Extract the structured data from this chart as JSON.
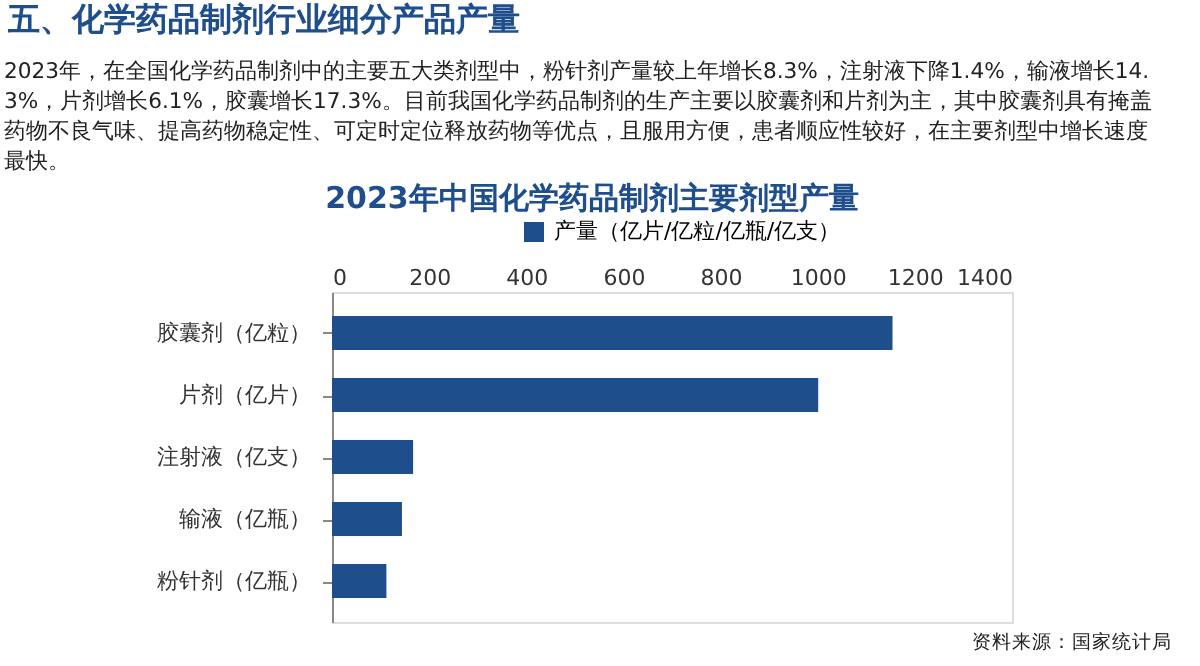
{
  "chart_data": {
    "type": "bar",
    "orientation": "horizontal",
    "title": "2023年中国化学药品制剂主要剂型产量",
    "annotations": [
      "五、化学药品制剂行业细分产品产量",
      "2023年，在全国化学药品制剂中的主要五大类剂型中，粉针剂产量较上年增长8.3%，注射液下降1.4%，输液增长14.3%，片剂增长6.1%，胶囊增长17.3%。目前我国化学药品制剂的生产主要以胶囊剂和片剂为主，其中胶囊剂具有掩盖药物不良气味、提高药物稳定性、可定时定位释放药物等优点，且服用方便，患者顺应性较好，在主要剂型中增长速度最快。",
      "资料来源：国家统计局"
    ],
    "categories": [
      "胶囊剂（亿粒）",
      "片剂（亿片）",
      "注射液（亿支）",
      "输液（亿瓶）",
      "粉针剂（亿瓶）"
    ],
    "series": [
      {
        "name": "产量（亿片/亿粒/亿瓶/亿支）",
        "color": "#1f4e8c",
        "values": [
          1154,
          1001,
          167,
          144,
          112
        ]
      }
    ],
    "xlim": [
      0,
      1400
    ],
    "xticks": [
      0,
      200,
      400,
      600,
      800,
      {
        "value": 1000,
        "label": "1000"
      },
      {
        "value": 1200,
        "label": "1200"
      },
      {
        "value": 1400,
        "label": "1400"
      }
    ],
    "grid": false,
    "legend": "top"
  }
}
